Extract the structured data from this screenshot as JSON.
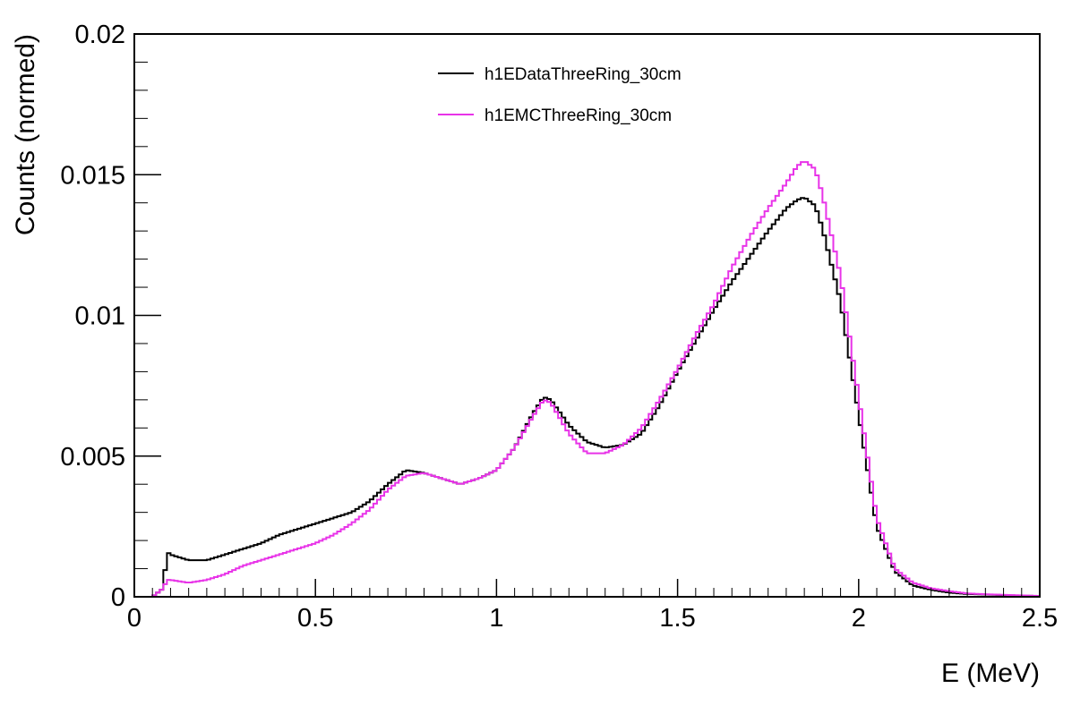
{
  "chart_data": {
    "type": "line",
    "style": "step-histogram",
    "title": "",
    "xlabel": "E (MeV)",
    "ylabel": "Counts (normed)",
    "xlim": [
      0,
      2.5
    ],
    "ylim": [
      0,
      0.02
    ],
    "grid": false,
    "legend_position": "top-center",
    "x_ticks": [
      0,
      0.5,
      1,
      1.5,
      2,
      2.5
    ],
    "x_tick_labels": [
      "0",
      "0.5",
      "1",
      "1.5",
      "2",
      "2.5"
    ],
    "y_ticks": [
      0,
      0.005,
      0.01,
      0.015,
      0.02
    ],
    "y_tick_labels": [
      "0",
      "0.005",
      "0.01",
      "0.015",
      "0.02"
    ],
    "series": [
      {
        "name": "h1EDataThreeRing_30cm",
        "color": "#000000",
        "x": [
          0,
          0.05,
          0.08,
          0.09,
          0.1,
          0.15,
          0.2,
          0.25,
          0.3,
          0.35,
          0.4,
          0.45,
          0.5,
          0.55,
          0.6,
          0.65,
          0.7,
          0.75,
          0.8,
          0.85,
          0.9,
          0.95,
          1.0,
          1.05,
          1.1,
          1.13,
          1.15,
          1.2,
          1.25,
          1.3,
          1.35,
          1.4,
          1.45,
          1.5,
          1.55,
          1.6,
          1.65,
          1.7,
          1.75,
          1.8,
          1.83,
          1.85,
          1.88,
          1.9,
          1.95,
          2.0,
          2.05,
          2.1,
          2.15,
          2.2,
          2.25,
          2.3,
          2.35,
          2.4,
          2.45,
          2.5
        ],
        "values": [
          0.0,
          0.0,
          0.0003,
          0.0016,
          0.0015,
          0.0013,
          0.0013,
          0.0015,
          0.0017,
          0.0019,
          0.0022,
          0.0024,
          0.0026,
          0.0028,
          0.003,
          0.0034,
          0.004,
          0.0045,
          0.0044,
          0.0042,
          0.004,
          0.0042,
          0.0045,
          0.0053,
          0.0065,
          0.0071,
          0.007,
          0.0061,
          0.0055,
          0.0053,
          0.0054,
          0.0058,
          0.0068,
          0.008,
          0.0091,
          0.0102,
          0.0112,
          0.0121,
          0.013,
          0.0138,
          0.0141,
          0.0142,
          0.0139,
          0.0131,
          0.0105,
          0.0065,
          0.0025,
          0.0009,
          0.0004,
          0.00025,
          0.00015,
          0.0001,
          8e-05,
          6e-05,
          4e-05,
          3e-05
        ]
      },
      {
        "name": "h1EMCThreeRing_30cm",
        "color": "#e833e8",
        "x": [
          0,
          0.05,
          0.08,
          0.09,
          0.1,
          0.15,
          0.2,
          0.25,
          0.3,
          0.35,
          0.4,
          0.45,
          0.5,
          0.55,
          0.6,
          0.65,
          0.7,
          0.75,
          0.8,
          0.85,
          0.9,
          0.95,
          1.0,
          1.05,
          1.1,
          1.13,
          1.15,
          1.2,
          1.25,
          1.3,
          1.35,
          1.4,
          1.45,
          1.5,
          1.55,
          1.6,
          1.65,
          1.7,
          1.75,
          1.8,
          1.83,
          1.85,
          1.88,
          1.9,
          1.95,
          2.0,
          2.05,
          2.1,
          2.15,
          2.2,
          2.25,
          2.3,
          2.35,
          2.4,
          2.45,
          2.5
        ],
        "values": [
          0.0,
          0.0,
          0.0003,
          0.0006,
          0.0006,
          0.0005,
          0.0006,
          0.0008,
          0.0011,
          0.0013,
          0.0015,
          0.0017,
          0.0019,
          0.0022,
          0.0026,
          0.0031,
          0.0038,
          0.0043,
          0.0044,
          0.0042,
          0.004,
          0.0042,
          0.0045,
          0.0053,
          0.0064,
          0.007,
          0.0069,
          0.0058,
          0.0051,
          0.0051,
          0.0054,
          0.006,
          0.007,
          0.0081,
          0.0093,
          0.0104,
          0.0117,
          0.0128,
          0.0138,
          0.0147,
          0.0153,
          0.0155,
          0.0152,
          0.0143,
          0.0114,
          0.0071,
          0.0028,
          0.001,
          0.0005,
          0.0003,
          0.0002,
          0.00012,
          9e-05,
          7e-05,
          5e-05,
          3e-05
        ]
      }
    ]
  }
}
